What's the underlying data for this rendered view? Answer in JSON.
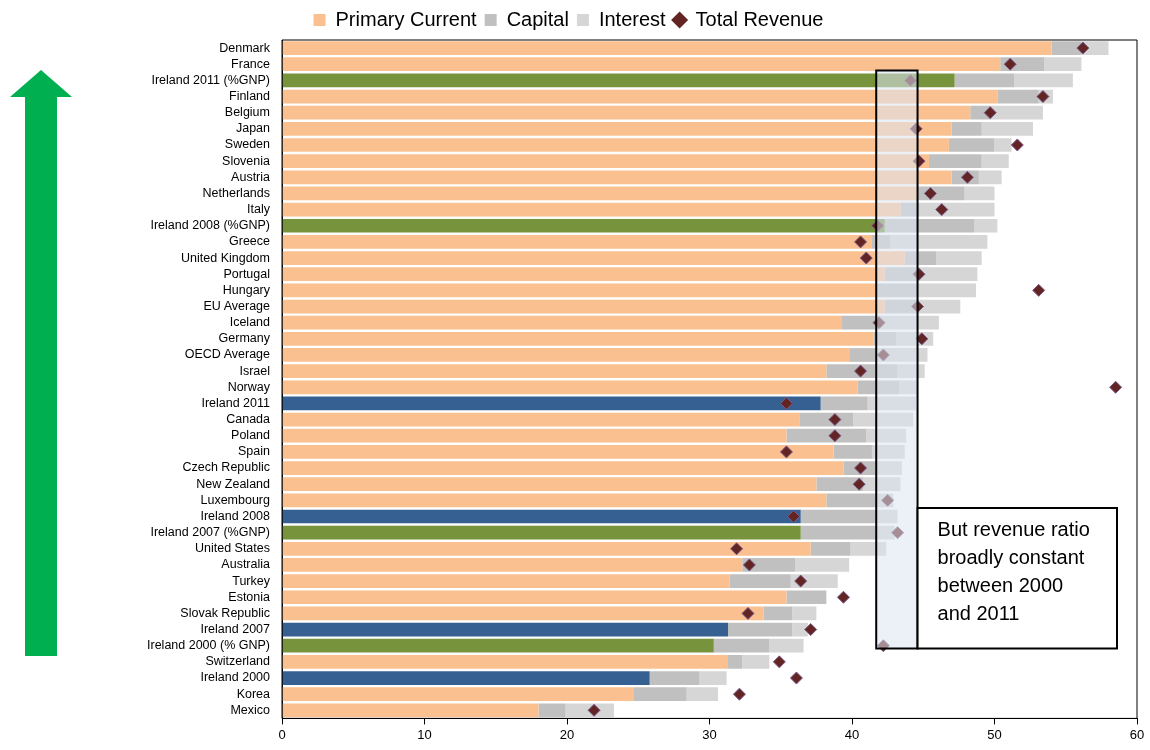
{
  "chart_data": {
    "type": "bar",
    "orientation": "horizontal",
    "stacked": true,
    "legend": "top",
    "grid": false,
    "marker": "diamond",
    "categories": [
      "Denmark",
      "France",
      "Ireland 2011 (%GNP)",
      "Finland",
      "Belgium",
      "Japan",
      "Sweden",
      "Slovenia",
      "Austria",
      "Netherlands",
      "Italy",
      "Ireland 2008 (%GNP)",
      "Greece",
      "United Kingdom",
      "Portugal",
      "Hungary",
      "EU Average",
      "Iceland",
      "Germany",
      "OECD Average",
      "Israel",
      "Norway",
      "Ireland 2011",
      "Canada",
      "Poland",
      "Spain",
      "Czech Republic",
      "New Zealand",
      "Luxembourg",
      "Ireland 2008",
      "Ireland 2007 (%GNP)",
      "United States",
      "Australia",
      "Turkey",
      "Estonia",
      "Slovak Republic",
      "Ireland 2007",
      "Ireland 2000 (% GNP)",
      "Switzerland",
      "Ireland 2000",
      "Korea",
      "Mexico"
    ],
    "xlim": [
      0,
      60
    ],
    "xticks": [
      0,
      10,
      20,
      30,
      40,
      50,
      60
    ],
    "series": [
      {
        "name": "Primary Current",
        "color": "#fac090",
        "colors": [
          "#fac090",
          "#fac090",
          "#77933c",
          "#fac090",
          "#fac090",
          "#fac090",
          "#fac090",
          "#fac090",
          "#fac090",
          "#fac090",
          "#fac090",
          "#77933c",
          "#fac090",
          "#fac090",
          "#fac090",
          "#fac090",
          "#fac090",
          "#fac090",
          "#fac090",
          "#fac090",
          "#fac090",
          "#fac090",
          "#366092",
          "#fac090",
          "#fac090",
          "#fac090",
          "#fac090",
          "#fac090",
          "#fac090",
          "#366092",
          "#77933c",
          "#fac090",
          "#fac090",
          "#fac090",
          "#fac090",
          "#fac090",
          "#366092",
          "#77933c",
          "#fac090",
          "#366092",
          "#fac090",
          "#fac090"
        ],
        "values": [
          54.0,
          50.4,
          47.2,
          50.2,
          48.3,
          47.0,
          46.8,
          45.4,
          47.0,
          44.6,
          43.4,
          42.3,
          41.4,
          43.7,
          42.3,
          41.7,
          42.3,
          39.3,
          41.5,
          39.8,
          38.2,
          40.4,
          37.8,
          36.3,
          35.4,
          38.7,
          39.4,
          37.5,
          38.2,
          36.4,
          36.4,
          37.1,
          32.3,
          31.4,
          35.4,
          33.8,
          31.3,
          30.3,
          31.3,
          25.8,
          24.7,
          18.0
        ]
      },
      {
        "name": "Capital",
        "color": "#c0c0c0",
        "values": [
          2.1,
          3.1,
          4.2,
          2.9,
          1.5,
          2.1,
          3.2,
          3.7,
          1.9,
          3.3,
          1.3,
          6.3,
          1.3,
          2.2,
          2.3,
          2.9,
          2.3,
          2.7,
          1.6,
          1.9,
          5.0,
          2.9,
          3.3,
          3.8,
          5.6,
          2.7,
          2.3,
          3.3,
          3.6,
          5.4,
          5.4,
          2.8,
          3.7,
          4.3,
          2.8,
          2.0,
          4.5,
          3.9,
          1.0,
          3.5,
          3.7,
          1.9
        ]
      },
      {
        "name": "Interest",
        "color": "#d6d6d6",
        "values": [
          1.9,
          2.6,
          4.1,
          1.0,
          3.6,
          3.6,
          1.2,
          1.9,
          1.6,
          2.1,
          5.3,
          1.6,
          6.8,
          3.2,
          4.2,
          4.1,
          3.0,
          4.1,
          2.6,
          3.6,
          1.9,
          1.3,
          3.4,
          4.2,
          2.8,
          2.3,
          1.8,
          2.6,
          1.1,
          1.4,
          1.2,
          2.5,
          3.8,
          3.3,
          null,
          1.7,
          1.1,
          2.4,
          1.9,
          1.9,
          2.2,
          3.4
        ]
      },
      {
        "name": "Total Revenue",
        "type": "scatter",
        "color": "#632523",
        "values": [
          56.2,
          51.1,
          44.1,
          53.4,
          49.7,
          44.5,
          51.6,
          44.7,
          48.1,
          45.5,
          46.3,
          41.8,
          40.6,
          41.0,
          44.7,
          53.1,
          44.6,
          41.9,
          44.9,
          42.2,
          40.6,
          58.5,
          35.4,
          38.8,
          38.8,
          35.4,
          40.6,
          40.5,
          42.5,
          35.9,
          43.2,
          31.9,
          32.8,
          36.4,
          39.4,
          32.7,
          37.1,
          42.2,
          34.9,
          36.1,
          32.1,
          21.9
        ]
      }
    ],
    "bands": [
      {
        "axis": "x",
        "from": 41.7,
        "to": 44.6,
        "color": "#dce6f2",
        "label": "But revenue ratio broadly constant between 2000 and 2011"
      }
    ]
  }
}
